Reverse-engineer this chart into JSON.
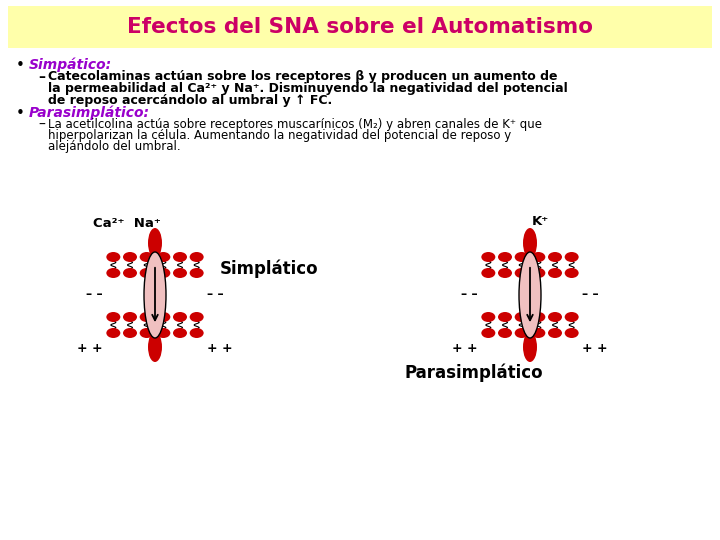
{
  "title": "Efectos del SNA sobre el Automatismo",
  "title_color": "#CC0066",
  "title_bg": "#FFFFAA",
  "bg_color": "#FFFFFF",
  "bullet1_label": "Simpático:",
  "bullet1_color": "#9900CC",
  "bullet1_line1": "Catecolaminas actúan sobre los receptores β y producen un aumento de",
  "bullet1_line2": "la permeabilidad al Ca²⁺ y Na⁺. Disminuyendo la negatividad del potencial",
  "bullet1_line3": "de reposo acercándolo al umbral y ↑ FC.",
  "bullet2_label": "Parasimplático:",
  "bullet2_label_text": "Parasimplático:",
  "bullet2_color": "#9900CC",
  "bullet2_line1": "La acetilcolina actúa sobre receptores muscarínicos (M₂) y abren canales de K⁺ que",
  "bullet2_line2": "hiperpolarizan la célula. Aumentando la negatividad del potencial de reposo y",
  "bullet2_line3": "alejándolo del umbral.",
  "simpatico_label": "Simplático",
  "parasimpatico_label": "Parasimplático",
  "ca_na_label": "Ca²⁺  Na⁺",
  "k_label": "K⁺",
  "red_color": "#CC0000",
  "pink_color": "#F0C0C0",
  "black": "#000000",
  "text_black": "#111111"
}
